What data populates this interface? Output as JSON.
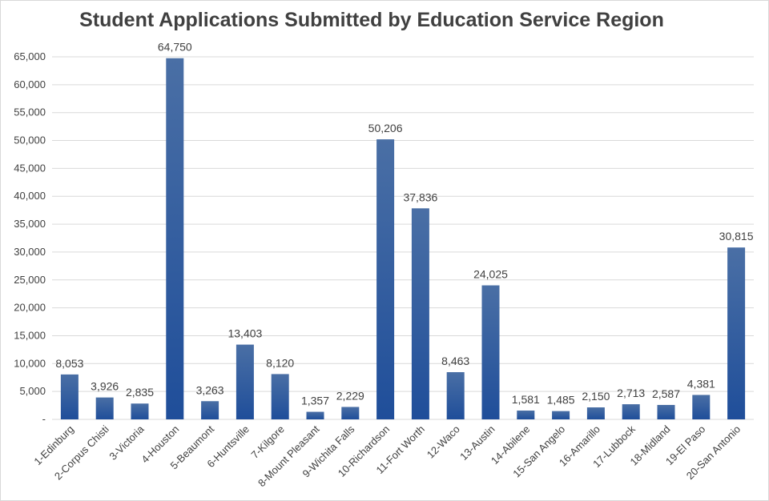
{
  "chart_data": {
    "type": "bar",
    "title": "Student Applications Submitted by Education Service Region",
    "xlabel": "",
    "ylabel": "",
    "categories": [
      "1-Edinburg",
      "2-Corpus Chisti",
      "3-Victoria",
      "4-Houston",
      "5-Beaumont",
      "6-Huntsville",
      "7-Kilgore",
      "8-Mount Pleasant",
      "9-Wichita Falls",
      "10-Richardson",
      "11-Fort Worth",
      "12-Waco",
      "13-Austin",
      "14-Abilene",
      "15-San Angelo",
      "16-Amarillo",
      "17-Lubbock",
      "18-Midland",
      "19-El Paso",
      "20-San Antonio"
    ],
    "values": [
      8053,
      3926,
      2835,
      64750,
      3263,
      13403,
      8120,
      1357,
      2229,
      50206,
      37836,
      8463,
      24025,
      1581,
      1485,
      2150,
      2713,
      2587,
      4381,
      30815
    ],
    "value_labels": [
      "8,053",
      "3,926",
      "2,835",
      "64,750",
      "3,263",
      "13,403",
      "8,120",
      "1,357",
      "2,229",
      "50,206",
      "37,836",
      "8,463",
      "24,025",
      "1,581",
      "1,485",
      "2,150",
      "2,713",
      "2,587",
      "4,381",
      "30,815"
    ],
    "y_ticks": [
      0,
      5000,
      10000,
      15000,
      20000,
      25000,
      30000,
      35000,
      40000,
      45000,
      50000,
      55000,
      60000,
      65000
    ],
    "y_tick_labels": [
      "-",
      "5,000",
      "10,000",
      "15,000",
      "20,000",
      "25,000",
      "30,000",
      "35,000",
      "40,000",
      "45,000",
      "50,000",
      "55,000",
      "60,000",
      "65,000"
    ],
    "ylim": [
      0,
      65000
    ],
    "grid": true,
    "legend": "none",
    "bar_color_top": "#4a6fa5",
    "bar_color_bottom": "#1f4e9a"
  }
}
